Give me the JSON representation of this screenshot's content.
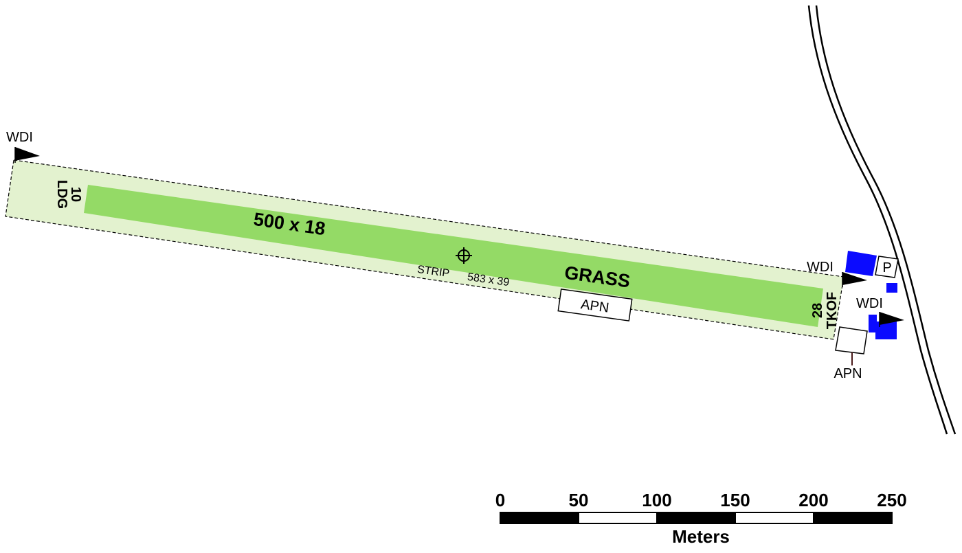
{
  "runway": {
    "dimensions": "500 x 18",
    "surface": "GRASS",
    "strip_label": "STRIP",
    "strip_dimensions": "583 x 39",
    "fill_color": "#94da66",
    "strip_fill_color": "#e3f2cf"
  },
  "runway_ends": {
    "west": {
      "number": "10",
      "use": "LDG"
    },
    "east": {
      "number": "28",
      "use": "TKOF"
    }
  },
  "labels": {
    "wdi": "WDI",
    "apron": "APN",
    "parking": "P"
  },
  "building_color": "#0b0bff",
  "scale_bar": {
    "unit": "Meters",
    "ticks": [
      "0",
      "50",
      "100",
      "150",
      "200",
      "250"
    ]
  }
}
